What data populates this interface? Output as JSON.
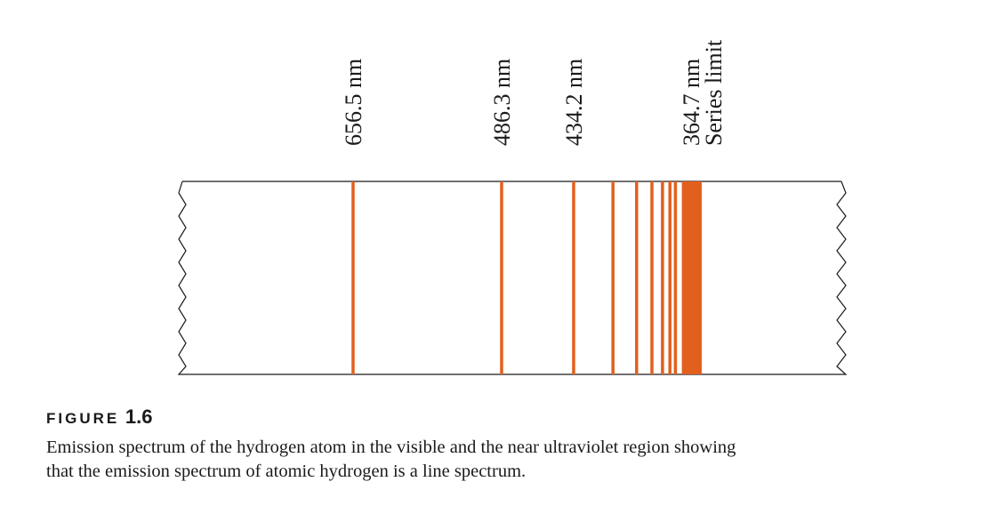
{
  "figure": {
    "lines": [
      {
        "wavelength_nm": 656.5,
        "label": "656.5 nm",
        "sublabel": ""
      },
      {
        "wavelength_nm": 486.3,
        "label": "486.3 nm",
        "sublabel": ""
      },
      {
        "wavelength_nm": 434.2,
        "label": "434.2 nm",
        "sublabel": ""
      },
      {
        "wavelength_nm": 410.2,
        "label": "",
        "sublabel": ""
      },
      {
        "wavelength_nm": 397.0,
        "label": "",
        "sublabel": ""
      },
      {
        "wavelength_nm": 388.9,
        "label": "",
        "sublabel": ""
      },
      {
        "wavelength_nm": 383.5,
        "label": "",
        "sublabel": ""
      },
      {
        "wavelength_nm": 379.8,
        "label": "",
        "sublabel": ""
      },
      {
        "wavelength_nm": 377.1,
        "label": "",
        "sublabel": ""
      }
    ],
    "series_limit": {
      "wavelength_nm": 364.7,
      "label": "364.7 nm",
      "sublabel": "Series limit"
    },
    "line_color": "#e2601e",
    "frame_color": "#1a1a1a"
  },
  "caption": {
    "heading_word": "FIGURE",
    "heading_number": "1.6",
    "line1": "Emission spectrum of the hydrogen atom in the visible and the near ultraviolet region showing",
    "line2": "that the emission spectrum of atomic hydrogen is a line spectrum."
  }
}
